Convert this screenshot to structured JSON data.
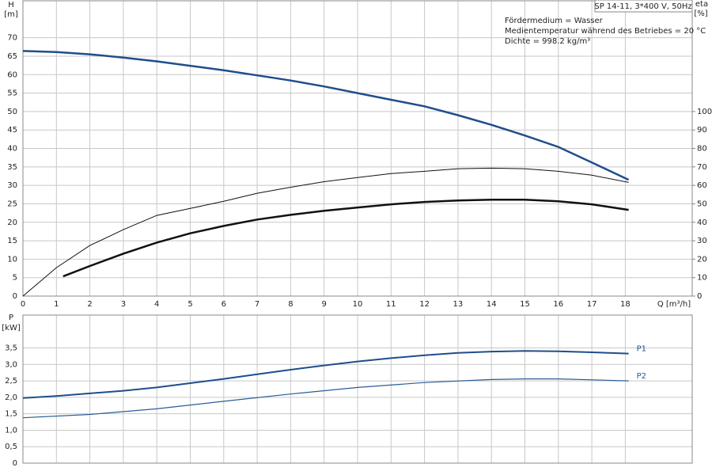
{
  "chart_data": [
    {
      "type": "line",
      "title": "SP 14-11, 3*400 V, 50Hz",
      "annotations": [
        "Fördermedium = Wasser",
        "Medientemperatur während des Betriebes = 20 °C",
        "Dichte = 998.2 kg/m³"
      ],
      "ylabel": "H",
      "yunit": "[m]",
      "y2label": "eta",
      "y2unit": "[%]",
      "xlabel": "Q [m³/h]",
      "xlim": [
        0,
        20
      ],
      "xticks": [
        0,
        1,
        2,
        3,
        4,
        5,
        6,
        7,
        8,
        9,
        10,
        11,
        12,
        13,
        14,
        15,
        16,
        17,
        18
      ],
      "ylim": [
        0,
        80
      ],
      "yticks": [
        0,
        5,
        10,
        15,
        20,
        25,
        30,
        35,
        40,
        45,
        50,
        55,
        60,
        65,
        70
      ],
      "y2lim": [
        0,
        160
      ],
      "y2ticks": [
        0,
        10,
        20,
        30,
        40,
        50,
        60,
        70,
        80,
        90,
        100
      ],
      "grid": true,
      "series": [
        {
          "color": "#1f4e8c",
          "line_width": 2.5,
          "x": [
            0,
            1,
            2,
            3,
            4,
            5,
            6,
            7,
            8,
            9,
            10,
            11,
            12,
            13,
            14,
            15,
            16,
            17,
            18.1
          ],
          "values": [
            66.4,
            66.1,
            65.5,
            64.6,
            63.6,
            62.4,
            61.2,
            59.8,
            58.4,
            56.8,
            55,
            53.2,
            51.4,
            49,
            46.4,
            43.5,
            40.4,
            36.2,
            31.5
          ]
        },
        {
          "color": "#111111",
          "line_width": 1,
          "axis": "y2",
          "x": [
            0,
            1,
            2,
            3,
            4,
            5,
            6,
            7,
            8,
            9,
            10,
            11,
            12,
            13,
            14,
            15,
            16,
            17,
            18.1
          ],
          "values": [
            0,
            15.4,
            27.4,
            36,
            43.7,
            47.5,
            51.4,
            55.7,
            59,
            62,
            64.2,
            66.4,
            67.6,
            69,
            69.3,
            69,
            67.6,
            65.5,
            61.6
          ]
        },
        {
          "color": "#111111",
          "line_width": 2.5,
          "axis": "y2",
          "x": [
            1.2,
            2,
            3,
            4,
            5,
            6,
            7,
            8,
            9,
            10,
            11,
            12,
            13,
            14,
            15,
            16,
            17,
            18.1
          ],
          "values": [
            10.7,
            16.3,
            23,
            29,
            34,
            38,
            41.5,
            44,
            46.2,
            48,
            49.7,
            51,
            51.8,
            52.2,
            52.2,
            51.4,
            49.7,
            46.7
          ]
        }
      ]
    },
    {
      "type": "line",
      "ylabel": "P",
      "yunit": "[kW]",
      "xlim": [
        0,
        20
      ],
      "xticks": [
        0,
        1,
        2,
        3,
        4,
        5,
        6,
        7,
        8,
        9,
        10,
        11,
        12,
        13,
        14,
        15,
        16,
        17,
        18
      ],
      "ylim": [
        0,
        4.5
      ],
      "yticks": [
        0,
        {
          "value": 0.5,
          "label": "0,5"
        },
        {
          "value": 1,
          "label": "1,0"
        },
        {
          "value": 1.5,
          "label": "1,5"
        },
        {
          "value": 2,
          "label": "2,0"
        },
        {
          "value": 2.5,
          "label": "2,5"
        },
        {
          "value": 3,
          "label": "3,0"
        },
        {
          "value": 3.5,
          "label": "3,5"
        }
      ],
      "grid": true,
      "series": [
        {
          "name": "P1",
          "color": "#1f4e8c",
          "line_width": 2,
          "x": [
            0,
            1,
            2,
            3,
            4,
            5,
            6,
            7,
            8,
            9,
            10,
            11,
            12,
            13,
            14,
            15,
            16,
            17,
            18.1
          ],
          "values": [
            1.98,
            2.04,
            2.12,
            2.2,
            2.3,
            2.43,
            2.56,
            2.7,
            2.84,
            2.97,
            3.09,
            3.19,
            3.28,
            3.35,
            3.39,
            3.41,
            3.4,
            3.37,
            3.33
          ]
        },
        {
          "name": "P2",
          "color": "#2a5b9a",
          "line_width": 1.2,
          "x": [
            0,
            2,
            4,
            6,
            8,
            10,
            12,
            14,
            15,
            16,
            18.1
          ],
          "values": [
            1.38,
            1.48,
            1.65,
            1.88,
            2.1,
            2.3,
            2.45,
            2.54,
            2.56,
            2.56,
            2.5
          ]
        }
      ]
    }
  ]
}
